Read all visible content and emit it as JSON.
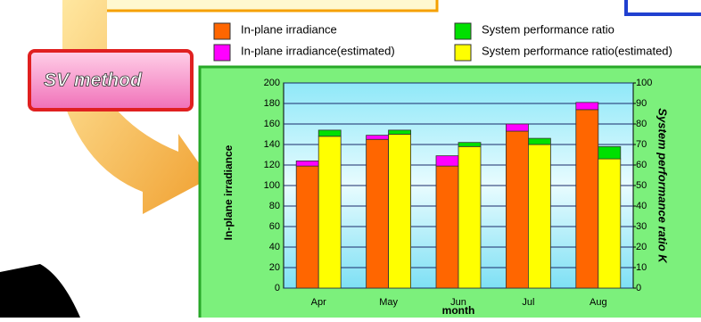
{
  "button": {
    "label": "SV method"
  },
  "chart_data": {
    "type": "stacked-bar-dual",
    "y_label": "In-plane irradiance",
    "y2_label": "System performance ratio K",
    "x_label": "month",
    "categories": [
      "Apr",
      "May",
      "Jun",
      "Jul",
      "Aug"
    ],
    "series": [
      {
        "name": "In-plane irradiance",
        "color": "#ff6600",
        "values": [
          119,
          145,
          119,
          153,
          174
        ]
      },
      {
        "name": "In-plane irradiance(estimated)",
        "color": "#ff00ff",
        "values": [
          5,
          4,
          10,
          7,
          7
        ]
      },
      {
        "name": "System performance ratio(estimated)",
        "color": "#ffff00",
        "values": [
          74,
          75,
          69,
          70,
          63
        ],
        "axis": "y2"
      },
      {
        "name": "System performance ratio",
        "color": "#00e000",
        "values": [
          3,
          2,
          2,
          3,
          6
        ],
        "axis": "y2"
      }
    ],
    "ylim": [
      0,
      200
    ],
    "yticks": [
      0,
      20,
      40,
      60,
      80,
      100,
      120,
      140,
      160,
      180,
      200
    ],
    "y2lim": [
      0,
      100
    ],
    "y2ticks": [
      0,
      10,
      20,
      30,
      40,
      50,
      60,
      70,
      80,
      90,
      100
    ],
    "grid": true
  }
}
